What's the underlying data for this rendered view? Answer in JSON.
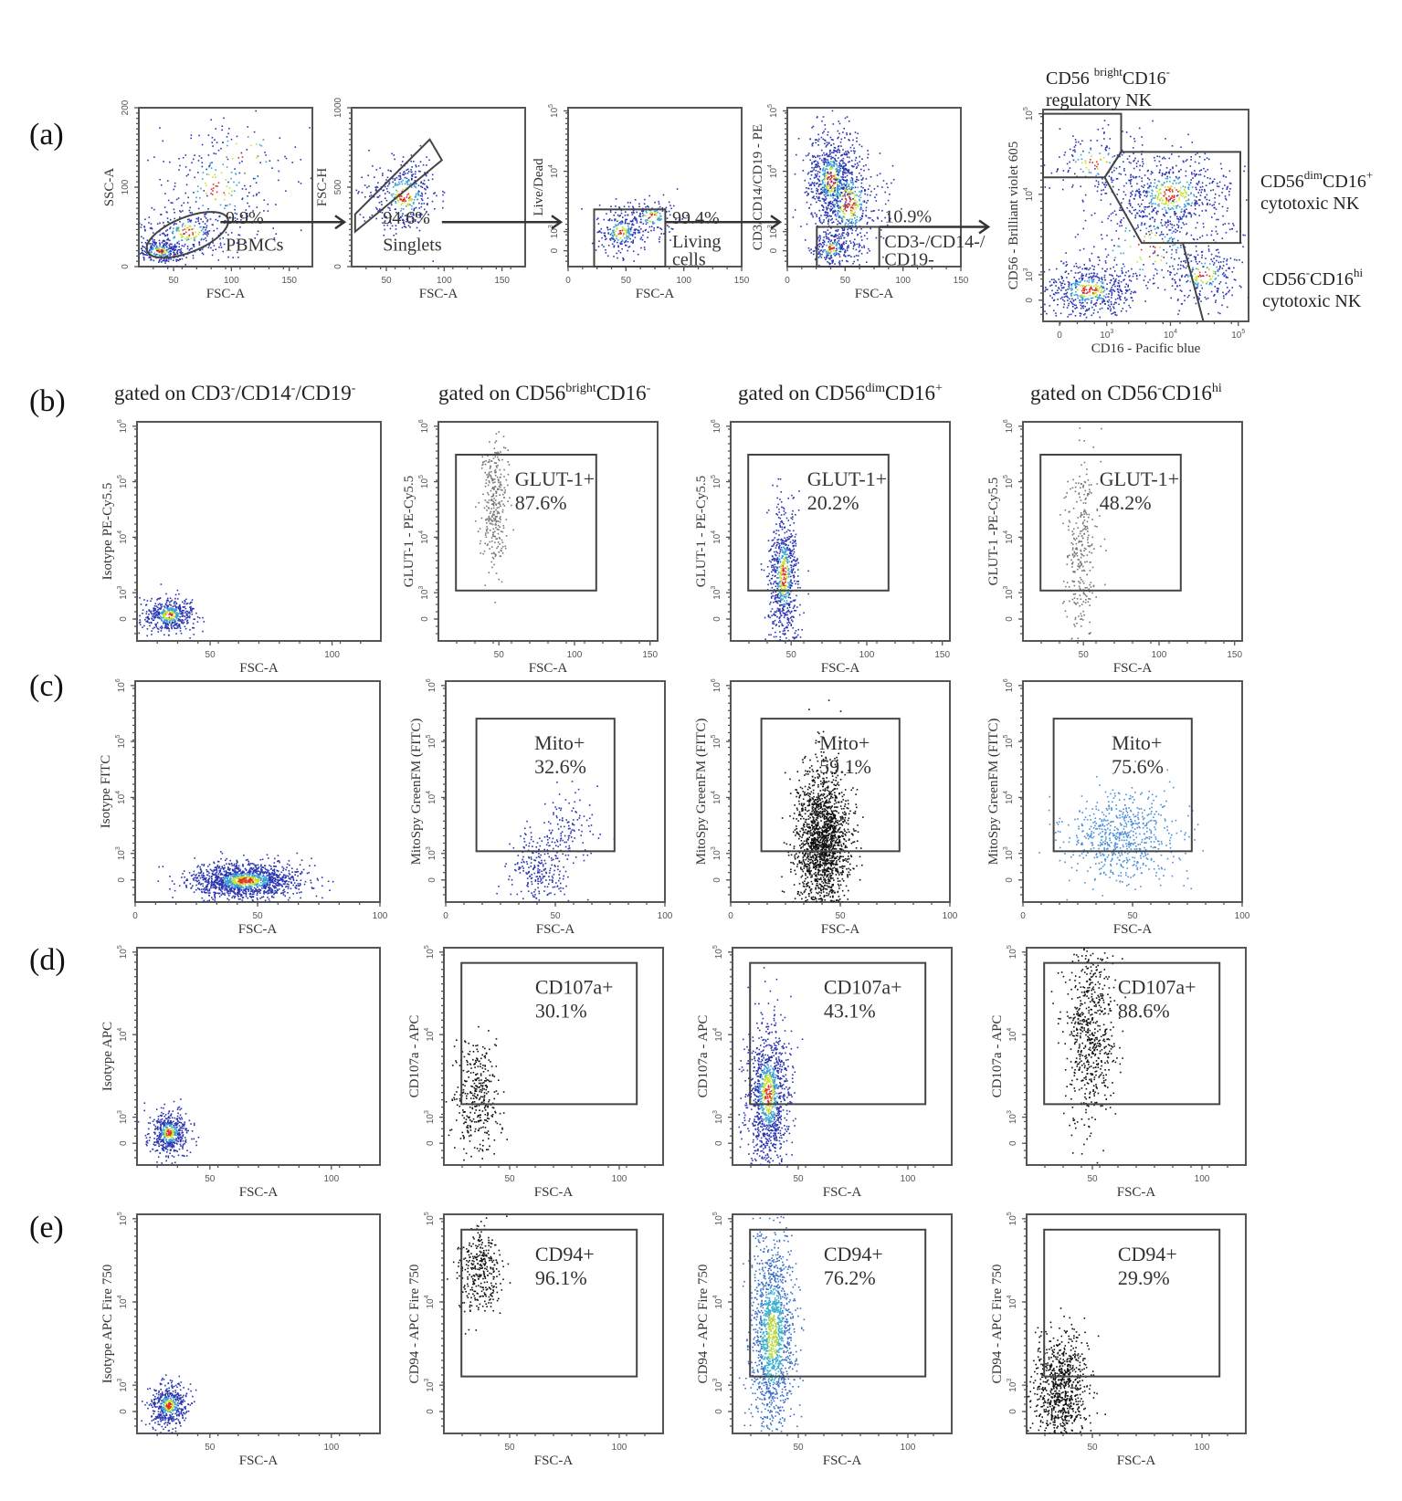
{
  "figure": {
    "row_labels": [
      "(a)",
      "(b)",
      "(c)",
      "(d)",
      "(e)"
    ],
    "column_headers": [
      {
        "text": "gated on CD3",
        "parts": [
          [
            "gated on CD3",
            ""
          ],
          [
            "-",
            "sup"
          ],
          [
            "/CD14",
            ""
          ],
          [
            "-",
            "sup"
          ],
          [
            "/CD19",
            ""
          ],
          [
            "-",
            "sup"
          ]
        ]
      },
      {
        "text": "gated on CD56 bright CD16-",
        "parts": [
          [
            "gated on CD56",
            ""
          ],
          [
            "bright",
            "sup"
          ],
          [
            "CD16",
            ""
          ],
          [
            "-",
            "sup"
          ]
        ]
      },
      {
        "text": "gated on CD56 dim CD16+",
        "parts": [
          [
            "gated on CD56",
            ""
          ],
          [
            "dim",
            "sup"
          ],
          [
            "CD16",
            ""
          ],
          [
            "+",
            "sup"
          ]
        ]
      },
      {
        "text": "gated on CD56- CD16 hi",
        "parts": [
          [
            "gated on CD56",
            ""
          ],
          [
            "-",
            "sup"
          ],
          [
            "CD16",
            ""
          ],
          [
            "hi",
            "sup"
          ]
        ]
      }
    ],
    "nk_subset_labels": {
      "bright": {
        "line1": [
          [
            "CD56 ",
            ""
          ],
          [
            "bright",
            "sup"
          ],
          [
            "CD16",
            ""
          ],
          [
            "-",
            "sup"
          ]
        ],
        "line2": "regulatory NK"
      },
      "dim": {
        "line1": [
          [
            "CD56",
            ""
          ],
          [
            "dim",
            "sup"
          ],
          [
            "CD16",
            ""
          ],
          [
            "+",
            "sup"
          ]
        ],
        "line2": "cytotoxic NK"
      },
      "neg": {
        "line1": [
          [
            "CD56",
            ""
          ],
          [
            "-",
            "sup"
          ],
          [
            "CD16",
            ""
          ],
          [
            "hi",
            "sup"
          ]
        ],
        "line2": "cytotoxic NK"
      }
    },
    "colors": {
      "density_low": "#2a35b0",
      "density_mid": "#3aa0d8",
      "density_high": "#c8e030",
      "density_peak": "#e03020",
      "gray_dots": "#777777",
      "black_dots": "#111111",
      "light_blue_dots": "#4a8fd8",
      "frame": "#555555"
    }
  },
  "chart_data": [
    {
      "id": "a1",
      "type": "scatter",
      "row": "a",
      "xlabel": "FSC-A",
      "ylabel": "SSC-A",
      "xlim": [
        20,
        170
      ],
      "ylim": [
        0,
        200
      ],
      "xticks": [
        "50",
        "100",
        "150"
      ],
      "yticks": [
        "0",
        "100",
        "200"
      ],
      "gate": {
        "shape": "ellipse",
        "label": "PBMCs",
        "percent": "9.9%"
      },
      "style": "density"
    },
    {
      "id": "a2",
      "type": "scatter",
      "row": "a",
      "xlabel": "FSC-A",
      "ylabel": "FSC-H",
      "xlim": [
        20,
        170
      ],
      "ylim": [
        0,
        1000
      ],
      "xticks": [
        "50",
        "100",
        "150"
      ],
      "yticks": [
        "0",
        "500",
        "1000"
      ],
      "gate": {
        "shape": "polygon",
        "label": "Singlets",
        "percent": "94.6%"
      },
      "style": "density"
    },
    {
      "id": "a3",
      "type": "scatter",
      "row": "a",
      "xlabel": "FSC-A",
      "ylabel": "Live/Dead",
      "xlim": [
        0,
        150
      ],
      "ylim": [
        "-10^3",
        "10^5"
      ],
      "xticks": [
        "0",
        "50",
        "100",
        "150"
      ],
      "yticks": [
        "0",
        "10^3",
        "10^4",
        "10^5"
      ],
      "gate": {
        "shape": "rect",
        "label": "Living cells",
        "label_lines": [
          "Living",
          "cells"
        ],
        "percent": "99.4%"
      },
      "style": "density"
    },
    {
      "id": "a4",
      "type": "scatter",
      "row": "a",
      "xlabel": "FSC-A",
      "ylabel": "CD3/CD14/CD19 - PE",
      "xlim": [
        0,
        150
      ],
      "ylim": [
        "-10^3",
        "10^5"
      ],
      "xticks": [
        "0",
        "50",
        "100",
        "150"
      ],
      "yticks": [
        "0",
        "10^3",
        "10^4",
        "10^5"
      ],
      "gate": {
        "shape": "rect",
        "label": "CD3-/CD14-/CD19-",
        "label_lines": [
          "CD3-/CD14-/",
          "CD19-"
        ],
        "percent": "10.9%"
      },
      "style": "density"
    },
    {
      "id": "a5",
      "type": "scatter",
      "row": "a",
      "xlabel": "CD16 - Pacific blue",
      "ylabel": "CD56 - Brilliant violet 605",
      "xlim": [
        "-10^3",
        "10^5"
      ],
      "ylim": [
        "-10^3",
        "10^5"
      ],
      "xticks": [
        "0",
        "10^3",
        "10^4",
        "10^5"
      ],
      "yticks": [
        "0",
        "10^3",
        "10^4",
        "10^5"
      ],
      "gates": [
        "CD56 bright CD16- regulatory NK",
        "CD56 dim CD16+ cytotoxic NK",
        "CD56- CD16 hi cytotoxic NK"
      ],
      "style": "density"
    },
    {
      "id": "b1",
      "type": "scatter",
      "row": "b",
      "xlabel": "FSC-A",
      "ylabel": "Isotype PE-Cy5.5",
      "xlim": [
        20,
        120
      ],
      "ylim": [
        "-10^3",
        "10^6"
      ],
      "xticks": [
        "50",
        "100"
      ],
      "yticks": [
        "0",
        "10^3",
        "10^4",
        "10^5",
        "10^6"
      ],
      "style": "density",
      "gate": null
    },
    {
      "id": "b2",
      "type": "scatter",
      "row": "b",
      "xlabel": "FSC-A",
      "ylabel": "GLUT-1 - PE-Cy5.5",
      "xlim": [
        10,
        155
      ],
      "ylim": [
        "-10^3",
        "10^6"
      ],
      "xticks": [
        "50",
        "100",
        "150"
      ],
      "yticks": [
        "0",
        "10^3",
        "10^4",
        "10^5",
        "10^6"
      ],
      "style": "gray",
      "gate": {
        "marker": "GLUT-1+",
        "percent": "87.6%"
      }
    },
    {
      "id": "b3",
      "type": "scatter",
      "row": "b",
      "xlabel": "FSC-A",
      "ylabel": "GLUT-1 - PE-Cy5.5",
      "xlim": [
        10,
        155
      ],
      "ylim": [
        "-10^3",
        "10^6"
      ],
      "xticks": [
        "50",
        "100",
        "150"
      ],
      "yticks": [
        "0",
        "10^3",
        "10^4",
        "10^5",
        "10^6"
      ],
      "style": "density",
      "gate": {
        "marker": "GLUT-1+",
        "percent": "20.2%"
      }
    },
    {
      "id": "b4",
      "type": "scatter",
      "row": "b",
      "xlabel": "FSC-A",
      "ylabel": "GLUT-1 -PE-Cy5.5",
      "xlim": [
        10,
        155
      ],
      "ylim": [
        "-10^3",
        "10^6"
      ],
      "xticks": [
        "50",
        "100",
        "150"
      ],
      "yticks": [
        "0",
        "10^3",
        "10^4",
        "10^5",
        "10^6"
      ],
      "style": "gray",
      "gate": {
        "marker": "GLUT-1+",
        "percent": "48.2%"
      }
    },
    {
      "id": "c1",
      "type": "scatter",
      "row": "c",
      "xlabel": "FSC-A",
      "ylabel": "Isotype FITC",
      "xlim": [
        0,
        100
      ],
      "ylim": [
        "-10^3",
        "10^6"
      ],
      "xticks": [
        "0",
        "50",
        "100"
      ],
      "yticks": [
        "0",
        "10^3",
        "10^4",
        "10^5",
        "10^6"
      ],
      "style": "density",
      "gate": null
    },
    {
      "id": "c2",
      "type": "scatter",
      "row": "c",
      "xlabel": "FSC-A",
      "ylabel": "MitoSpy GreenFM (FITC)",
      "xlim": [
        0,
        100
      ],
      "ylim": [
        "-10^3",
        "10^6"
      ],
      "xticks": [
        "0",
        "50",
        "100"
      ],
      "yticks": [
        "0",
        "10^3",
        "10^4",
        "10^5",
        "10^6"
      ],
      "style": "blue",
      "gate": {
        "marker": "Mito+",
        "percent": "32.6%"
      }
    },
    {
      "id": "c3",
      "type": "scatter",
      "row": "c",
      "xlabel": "FSC-A",
      "ylabel": "MitoSpy GreenFM (FITC)",
      "xlim": [
        0,
        100
      ],
      "ylim": [
        "-10^3",
        "10^6"
      ],
      "xticks": [
        "0",
        "50",
        "100"
      ],
      "yticks": [
        "0",
        "10^3",
        "10^4",
        "10^5",
        "10^6"
      ],
      "style": "black",
      "gate": {
        "marker": "Mito+",
        "percent": "59.1%"
      }
    },
    {
      "id": "c4",
      "type": "scatter",
      "row": "c",
      "xlabel": "FSC-A",
      "ylabel": "MitoSpy GreenFM (FITC)",
      "xlim": [
        0,
        100
      ],
      "ylim": [
        "-10^3",
        "10^6"
      ],
      "xticks": [
        "0",
        "50",
        "100"
      ],
      "yticks": [
        "0",
        "10^3",
        "10^4",
        "10^5",
        "10^6"
      ],
      "style": "lightblue",
      "gate": {
        "marker": "Mito+",
        "percent": "75.6%"
      }
    },
    {
      "id": "d1",
      "type": "scatter",
      "row": "d",
      "xlabel": "FSC-A",
      "ylabel": "Isotype APC",
      "xlim": [
        20,
        120
      ],
      "ylim": [
        "-10^3",
        "10^5"
      ],
      "xticks": [
        "50",
        "100"
      ],
      "yticks": [
        "0",
        "10^3",
        "10^4",
        "10^5"
      ],
      "style": "density",
      "gate": null
    },
    {
      "id": "d2",
      "type": "scatter",
      "row": "d",
      "xlabel": "FSC-A",
      "ylabel": "CD107a - APC",
      "xlim": [
        20,
        120
      ],
      "ylim": [
        "-10^3",
        "10^5"
      ],
      "xticks": [
        "50",
        "100"
      ],
      "yticks": [
        "0",
        "10^3",
        "10^4",
        "10^5"
      ],
      "style": "black",
      "gate": {
        "marker": "CD107a+",
        "percent": "30.1%"
      }
    },
    {
      "id": "d3",
      "type": "scatter",
      "row": "d",
      "xlabel": "FSC-A",
      "ylabel": "CD107a - APC",
      "xlim": [
        20,
        120
      ],
      "ylim": [
        "-10^3",
        "10^5"
      ],
      "xticks": [
        "50",
        "100"
      ],
      "yticks": [
        "0",
        "10^3",
        "10^4",
        "10^5"
      ],
      "style": "density",
      "gate": {
        "marker": "CD107a+",
        "percent": "43.1%"
      }
    },
    {
      "id": "d4",
      "type": "scatter",
      "row": "d",
      "xlabel": "FSC-A",
      "ylabel": "CD107a - APC",
      "xlim": [
        20,
        120
      ],
      "ylim": [
        "-10^3",
        "10^5"
      ],
      "xticks": [
        "50",
        "100"
      ],
      "yticks": [
        "0",
        "10^3",
        "10^4",
        "10^5"
      ],
      "style": "black",
      "gate": {
        "marker": "CD107a+",
        "percent": "88.6%"
      }
    },
    {
      "id": "e1",
      "type": "scatter",
      "row": "e",
      "xlabel": "FSC-A",
      "ylabel": "Isotype APC Fire 750",
      "xlim": [
        20,
        120
      ],
      "ylim": [
        "-10^3",
        "10^5"
      ],
      "xticks": [
        "50",
        "100"
      ],
      "yticks": [
        "0",
        "10^3",
        "10^4",
        "10^5"
      ],
      "style": "density",
      "gate": null
    },
    {
      "id": "e2",
      "type": "scatter",
      "row": "e",
      "xlabel": "FSC-A",
      "ylabel": "CD94 - APC Fire 750",
      "xlim": [
        20,
        120
      ],
      "ylim": [
        "-10^3",
        "10^5"
      ],
      "xticks": [
        "50",
        "100"
      ],
      "yticks": [
        "0",
        "10^3",
        "10^4",
        "10^5"
      ],
      "style": "black",
      "gate": {
        "marker": "CD94+",
        "percent": "96.1%"
      }
    },
    {
      "id": "e3",
      "type": "scatter",
      "row": "e",
      "xlabel": "FSC-A",
      "ylabel": "CD94 - APC Fire 750",
      "xlim": [
        20,
        120
      ],
      "ylim": [
        "-10^3",
        "10^5"
      ],
      "xticks": [
        "50",
        "100"
      ],
      "yticks": [
        "0",
        "10^3",
        "10^4",
        "10^5"
      ],
      "style": "density-light",
      "gate": {
        "marker": "CD94+",
        "percent": "76.2%"
      }
    },
    {
      "id": "e4",
      "type": "scatter",
      "row": "e",
      "xlabel": "FSC-A",
      "ylabel": "CD94 - APC Fire 750",
      "xlim": [
        20,
        120
      ],
      "ylim": [
        "-10^3",
        "10^5"
      ],
      "xticks": [
        "50",
        "100"
      ],
      "yticks": [
        "0",
        "10^3",
        "10^4",
        "10^5"
      ],
      "style": "black",
      "gate": {
        "marker": "CD94+",
        "percent": "29.9%"
      }
    }
  ]
}
